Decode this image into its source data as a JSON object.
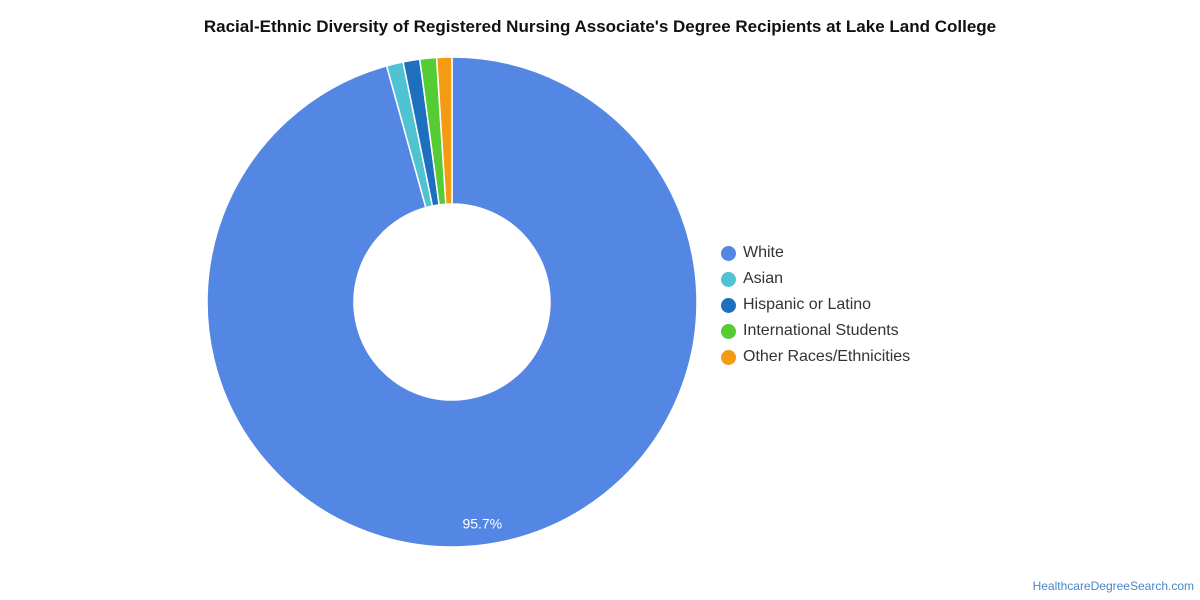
{
  "chart_data": {
    "type": "pie",
    "title": "Racial-Ethnic Diversity of Registered Nursing Associate's Degree Recipients at Lake Land College",
    "donut": true,
    "slices": [
      {
        "label": "White",
        "value": 95.7,
        "color": "#5486e3",
        "data_label": "95.7%"
      },
      {
        "label": "Asian",
        "value": 1.1,
        "color": "#4fc3d1",
        "data_label": ""
      },
      {
        "label": "Hispanic or Latino",
        "value": 1.1,
        "color": "#1f6fbf",
        "data_label": ""
      },
      {
        "label": "International Students",
        "value": 1.1,
        "color": "#55cc33",
        "data_label": ""
      },
      {
        "label": "Other Races/Ethnicities",
        "value": 1.0,
        "color": "#f39c12",
        "data_label": ""
      }
    ],
    "legend_position": "right"
  },
  "source": "HealthcareDegreeSearch.com"
}
